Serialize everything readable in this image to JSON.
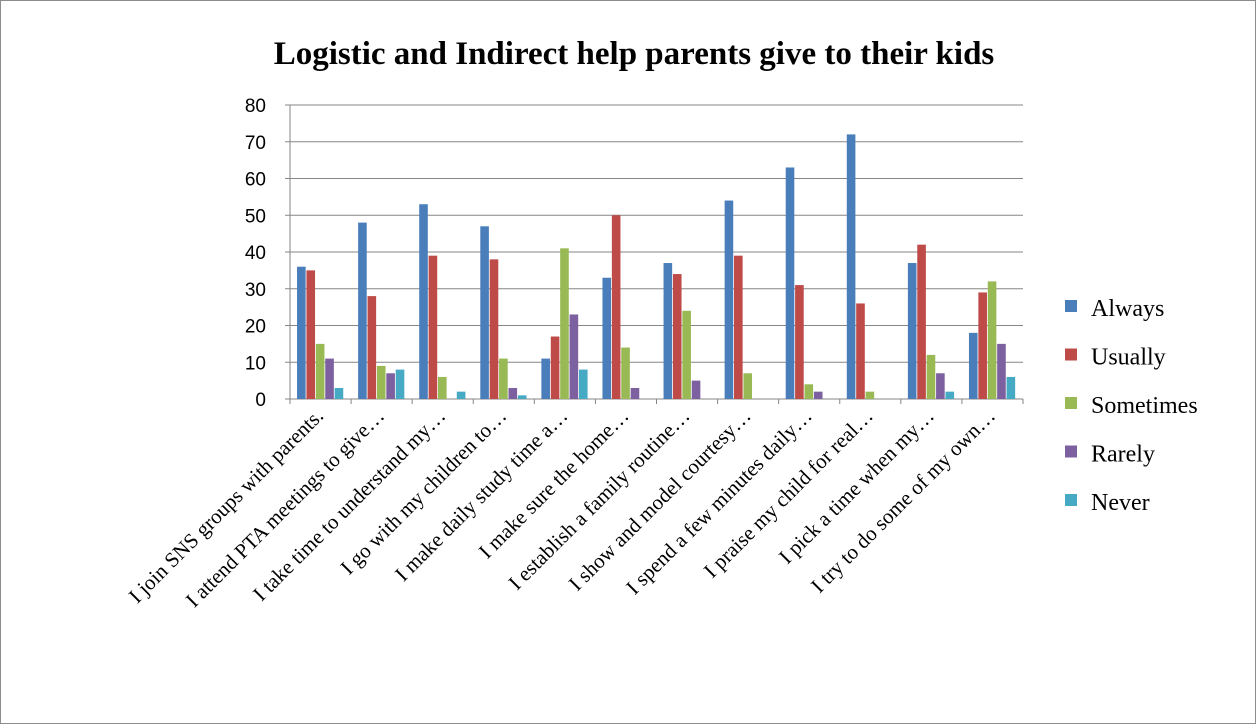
{
  "chart_data": {
    "type": "bar",
    "title": "Logistic and Indirect help parents give to their kids",
    "xlabel": "",
    "ylabel": "",
    "ylim": [
      0,
      80
    ],
    "yticks": [
      0,
      10,
      20,
      30,
      40,
      50,
      60,
      70,
      80
    ],
    "grid": true,
    "legend_position": "right",
    "categories": [
      "I join SNS groups with parents.",
      "I attend PTA meetings to give…",
      "I take time to understand my…",
      "I go with my children to…",
      "I make daily study time a…",
      "I make sure the home…",
      "I establish a family routine…",
      "I show and model courtesy…",
      "I spend a few minutes daily…",
      "I praise my child for real…",
      "I pick a time when my…",
      "I try to do some of my own…"
    ],
    "series": [
      {
        "name": "Always",
        "color": "#4a7ebb",
        "values": [
          36,
          48,
          53,
          47,
          11,
          33,
          37,
          54,
          63,
          72,
          37,
          18
        ]
      },
      {
        "name": "Usually",
        "color": "#be4b48",
        "values": [
          35,
          28,
          39,
          38,
          17,
          50,
          34,
          39,
          31,
          26,
          42,
          29
        ]
      },
      {
        "name": "Sometimes",
        "color": "#98b954",
        "values": [
          15,
          9,
          6,
          11,
          41,
          14,
          24,
          7,
          4,
          2,
          12,
          32
        ]
      },
      {
        "name": "Rarely",
        "color": "#7d60a0",
        "values": [
          11,
          7,
          0,
          3,
          23,
          3,
          5,
          0,
          2,
          0,
          7,
          15
        ]
      },
      {
        "name": "Never",
        "color": "#46aac5",
        "values": [
          3,
          8,
          2,
          1,
          8,
          0,
          0,
          0,
          0,
          0,
          2,
          6
        ]
      }
    ]
  }
}
